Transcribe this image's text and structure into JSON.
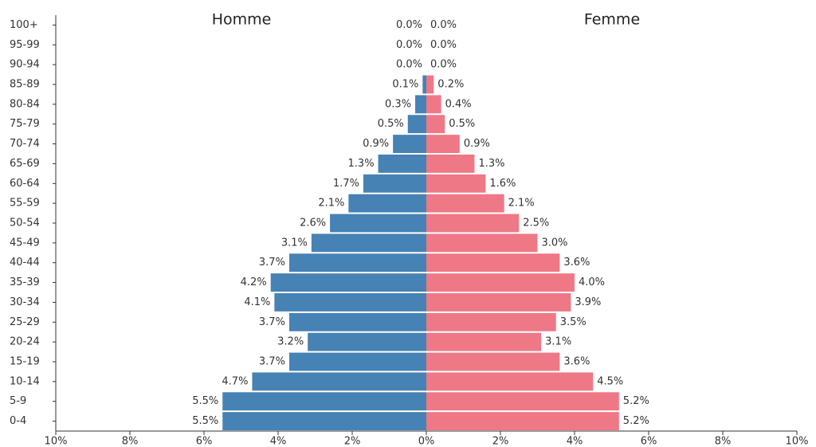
{
  "chart_data": {
    "type": "population-pyramid",
    "categories": [
      "100+",
      "95-99",
      "90-94",
      "85-89",
      "80-84",
      "75-79",
      "70-74",
      "65-69",
      "60-64",
      "55-59",
      "50-54",
      "45-49",
      "40-44",
      "35-39",
      "30-34",
      "25-29",
      "20-24",
      "15-19",
      "10-14",
      "5-9",
      "0-4"
    ],
    "series": [
      {
        "name": "Homme",
        "color": "#4682b4",
        "values": [
          0.0,
          0.0,
          0.0,
          0.1,
          0.3,
          0.5,
          0.9,
          1.3,
          1.7,
          2.1,
          2.6,
          3.1,
          3.7,
          4.2,
          4.1,
          3.7,
          3.2,
          3.7,
          4.7,
          5.5,
          5.5
        ],
        "value_labels": [
          "0.0%",
          "0.0%",
          "0.0%",
          "0.1%",
          "0.3%",
          "0.5%",
          "0.9%",
          "1.3%",
          "1.7%",
          "2.1%",
          "2.6%",
          "3.1%",
          "3.7%",
          "4.2%",
          "4.1%",
          "3.7%",
          "3.2%",
          "3.7%",
          "4.7%",
          "5.5%",
          "5.5%"
        ]
      },
      {
        "name": "Femme",
        "color": "#ef7886",
        "values": [
          0.0,
          0.0,
          0.0,
          0.2,
          0.4,
          0.5,
          0.9,
          1.3,
          1.6,
          2.1,
          2.5,
          3.0,
          3.6,
          4.0,
          3.9,
          3.5,
          3.1,
          3.6,
          4.5,
          5.2,
          5.2
        ],
        "value_labels": [
          "0.0%",
          "0.0%",
          "0.0%",
          "0.2%",
          "0.4%",
          "0.5%",
          "0.9%",
          "1.3%",
          "1.6%",
          "2.1%",
          "2.5%",
          "3.0%",
          "3.6%",
          "4.0%",
          "3.9%",
          "3.5%",
          "3.1%",
          "3.6%",
          "4.5%",
          "5.2%",
          "5.2%"
        ]
      }
    ],
    "xlim": [
      -10,
      10
    ],
    "xticks": [
      {
        "value": -10,
        "label": "10%"
      },
      {
        "value": -8,
        "label": "8%"
      },
      {
        "value": -6,
        "label": "6%"
      },
      {
        "value": -4,
        "label": "4%"
      },
      {
        "value": -2,
        "label": "2%"
      },
      {
        "value": 0,
        "label": "0%"
      },
      {
        "value": 2,
        "label": "2%"
      },
      {
        "value": 4,
        "label": "4%"
      },
      {
        "value": 6,
        "label": "6%"
      },
      {
        "value": 8,
        "label": "8%"
      },
      {
        "value": 10,
        "label": "10%"
      }
    ]
  }
}
